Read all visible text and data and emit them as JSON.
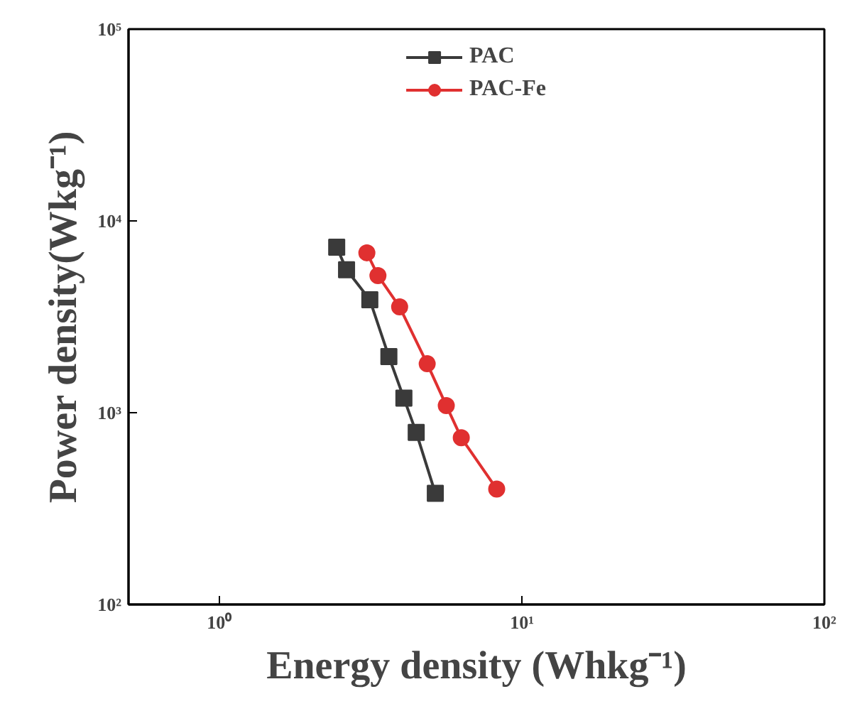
{
  "chart_data": {
    "type": "line",
    "xlabel": "Energy density (Whkg⁻¹)",
    "ylabel": "Power density(Wkg⁻¹)",
    "log": "xy",
    "xlim": [
      0.5,
      100
    ],
    "ylim": [
      100,
      100000
    ],
    "xticks": [
      {
        "value": 1,
        "label": "10⁰"
      },
      {
        "value": 10,
        "label": "10¹"
      },
      {
        "value": 100,
        "label": "10²"
      }
    ],
    "yticks": [
      {
        "value": 100,
        "label": "10²"
      },
      {
        "value": 1000,
        "label": "10³"
      },
      {
        "value": 10000,
        "label": "10⁴"
      },
      {
        "value": 100000,
        "label": "10⁵"
      }
    ],
    "legend": "top",
    "grid": false,
    "series": [
      {
        "name": "PAC",
        "color": "#3a3a3a",
        "marker": "square",
        "x": [
          2.44,
          2.63,
          3.14,
          3.63,
          4.07,
          4.47,
          5.17
        ],
        "values": [
          7300,
          5560,
          3880,
          1960,
          1190,
          790,
          380
        ]
      },
      {
        "name": "PAC-Fe",
        "color": "#e03030",
        "marker": "circle",
        "x": [
          3.07,
          3.34,
          3.94,
          4.86,
          5.62,
          6.3,
          8.25
        ],
        "values": [
          6820,
          5190,
          3560,
          1800,
          1090,
          740,
          400
        ]
      }
    ]
  }
}
